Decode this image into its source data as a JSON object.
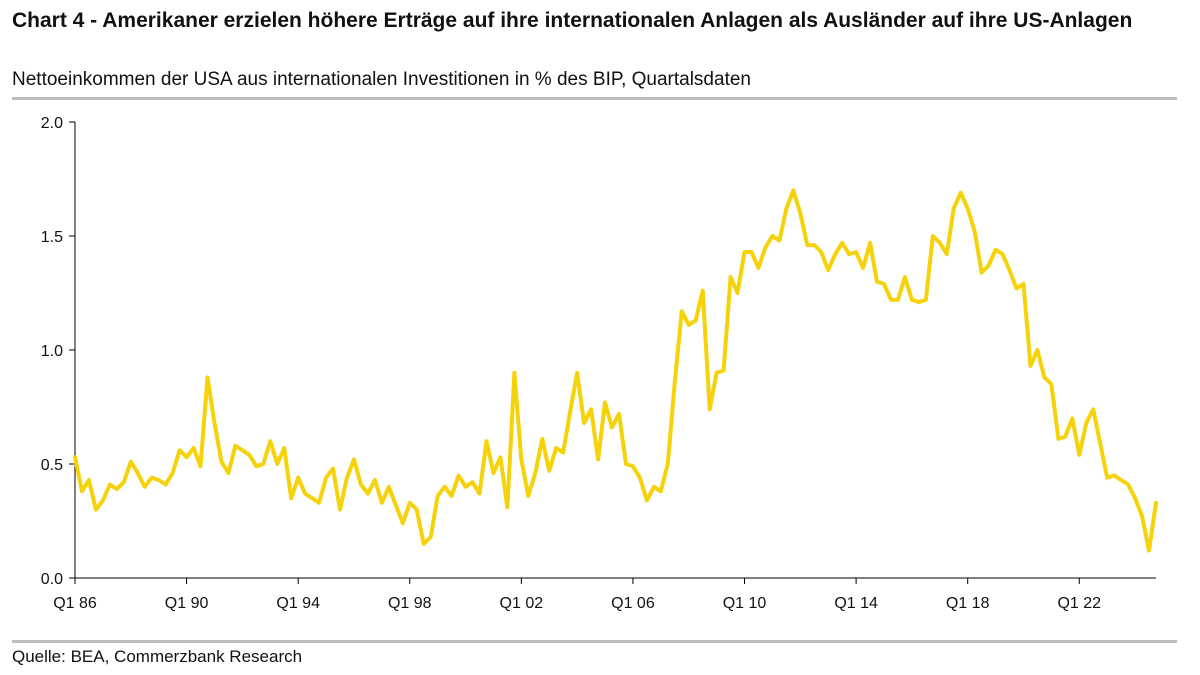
{
  "header": {
    "title": "Chart 4 - Amerikaner erzielen höhere Erträge auf ihre internationalen Anlagen als Ausländer auf ihre US-Anlagen",
    "subtitle": "Nettoeinkommen der USA aus internationalen Investitionen in % des BIP, Quartalsdaten"
  },
  "footer": {
    "source": "Quelle: BEA, Commerzbank Research"
  },
  "colors": {
    "line": "#f5d20a",
    "axis": "#000000",
    "rule": "#bdbdbd"
  },
  "chart_data": {
    "type": "line",
    "title": "Nettoeinkommen der USA aus internationalen Investitionen in % des BIP, Quartalsdaten",
    "xlabel": "",
    "ylabel": "",
    "ylim": [
      0,
      2
    ],
    "yticks": [
      0,
      0.5,
      1,
      1.5,
      2
    ],
    "ytick_labels": [
      "0.0",
      "0.5",
      "1.0",
      "1.5",
      "2.0"
    ],
    "xticks": [
      {
        "index": 0,
        "label": "Q1 86"
      },
      {
        "index": 16,
        "label": "Q1 90"
      },
      {
        "index": 32,
        "label": "Q1 94"
      },
      {
        "index": 48,
        "label": "Q1 98"
      },
      {
        "index": 64,
        "label": "Q1 02"
      },
      {
        "index": 80,
        "label": "Q1 06"
      },
      {
        "index": 96,
        "label": "Q1 10"
      },
      {
        "index": 112,
        "label": "Q1 14"
      },
      {
        "index": 128,
        "label": "Q1 18"
      },
      {
        "index": 144,
        "label": "Q1 22"
      }
    ],
    "grid": false,
    "x_start": "Q1 86",
    "series": [
      {
        "name": "Nettoeinkommen in % des BIP",
        "values": [
          0.53,
          0.38,
          0.43,
          0.3,
          0.34,
          0.41,
          0.39,
          0.42,
          0.51,
          0.46,
          0.4,
          0.44,
          0.43,
          0.41,
          0.46,
          0.56,
          0.53,
          0.57,
          0.49,
          0.88,
          0.68,
          0.51,
          0.46,
          0.58,
          0.56,
          0.54,
          0.49,
          0.5,
          0.6,
          0.5,
          0.57,
          0.35,
          0.44,
          0.37,
          0.35,
          0.33,
          0.44,
          0.48,
          0.3,
          0.44,
          0.52,
          0.41,
          0.37,
          0.43,
          0.33,
          0.4,
          0.32,
          0.24,
          0.33,
          0.3,
          0.15,
          0.18,
          0.36,
          0.4,
          0.36,
          0.45,
          0.4,
          0.42,
          0.37,
          0.6,
          0.46,
          0.53,
          0.31,
          0.9,
          0.52,
          0.36,
          0.46,
          0.61,
          0.47,
          0.57,
          0.55,
          0.73,
          0.9,
          0.68,
          0.74,
          0.52,
          0.77,
          0.66,
          0.72,
          0.5,
          0.49,
          0.44,
          0.34,
          0.4,
          0.38,
          0.5,
          0.86,
          1.17,
          1.11,
          1.13,
          1.26,
          0.74,
          0.9,
          0.91,
          1.32,
          1.25,
          1.43,
          1.43,
          1.36,
          1.45,
          1.5,
          1.48,
          1.62,
          1.7,
          1.6,
          1.46,
          1.46,
          1.43,
          1.35,
          1.42,
          1.47,
          1.42,
          1.43,
          1.36,
          1.47,
          1.3,
          1.29,
          1.22,
          1.22,
          1.32,
          1.22,
          1.21,
          1.22,
          1.5,
          1.47,
          1.42,
          1.62,
          1.69,
          1.62,
          1.52,
          1.34,
          1.37,
          1.44,
          1.42,
          1.35,
          1.27,
          1.29,
          0.93,
          1.0,
          0.88,
          0.85,
          0.61,
          0.62,
          0.7,
          0.54,
          0.68,
          0.74,
          0.59,
          0.44,
          0.45,
          0.43,
          0.41,
          0.35,
          0.27,
          0.12,
          0.33
        ]
      }
    ]
  }
}
